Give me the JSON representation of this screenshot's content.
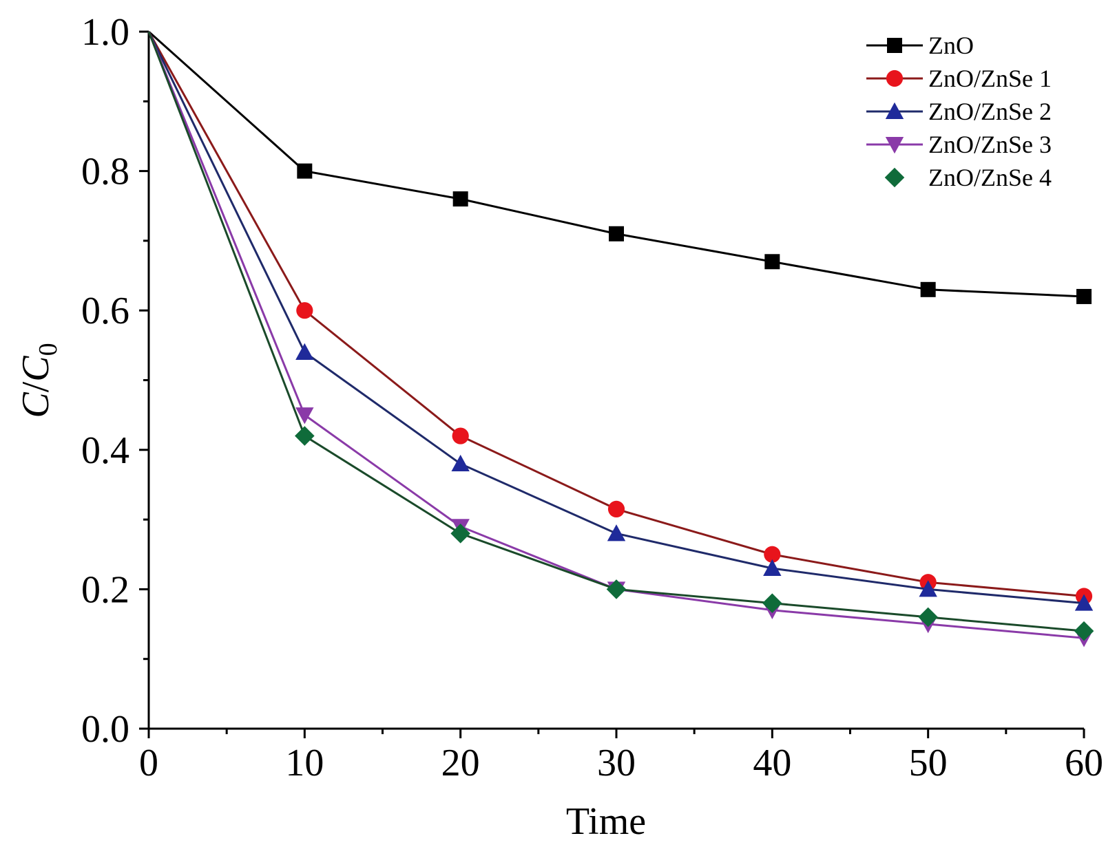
{
  "chart_data": {
    "type": "line",
    "xlabel": "Time",
    "ylabel": {
      "main": "C",
      "sep": "/",
      "den": "C",
      "sub": "0"
    },
    "x": [
      0,
      10,
      20,
      30,
      40,
      50,
      60
    ],
    "xlim": [
      0,
      60
    ],
    "ylim": [
      0.0,
      1.0
    ],
    "xticks": [
      "0",
      "10",
      "20",
      "30",
      "40",
      "50",
      "60"
    ],
    "yticks": [
      "0.0",
      "0.2",
      "0.4",
      "0.6",
      "0.8",
      "1.0"
    ],
    "legend_position": "top-right",
    "grid": false,
    "series": [
      {
        "name": "ZnO",
        "color": "#000000",
        "marker": "square",
        "values": [
          1.0,
          0.8,
          0.76,
          0.71,
          0.67,
          0.63,
          0.62
        ]
      },
      {
        "name": "ZnO/ZnSe 1",
        "color": "#e8141c",
        "line_color": "#8b1a1a",
        "marker": "circle",
        "values": [
          1.0,
          0.6,
          0.42,
          0.315,
          0.25,
          0.21,
          0.19
        ]
      },
      {
        "name": "ZnO/ZnSe 2",
        "color": "#1f2a9a",
        "line_color": "#1f2a6a",
        "marker": "triangle-up",
        "values": [
          1.0,
          0.54,
          0.38,
          0.28,
          0.23,
          0.2,
          0.18
        ]
      },
      {
        "name": "ZnO/ZnSe 3",
        "color": "#8a3aa8",
        "line_color": "#8a3aa8",
        "marker": "triangle-down",
        "values": [
          1.0,
          0.45,
          0.29,
          0.2,
          0.17,
          0.15,
          0.13
        ]
      },
      {
        "name": "ZnO/ZnSe 4",
        "color": "#0f6b3a",
        "line_color": "#1a4a2a",
        "marker": "diamond",
        "values": [
          1.0,
          0.42,
          0.28,
          0.2,
          0.18,
          0.16,
          0.14
        ]
      }
    ]
  }
}
